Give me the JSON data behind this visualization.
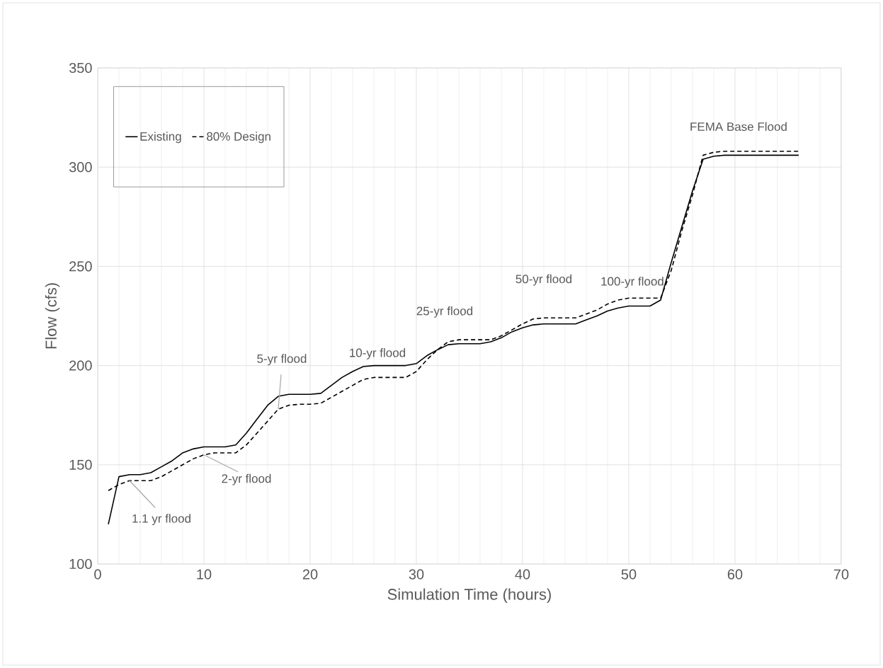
{
  "chart_data": {
    "type": "line",
    "xlabel": "Simulation Time (hours)",
    "ylabel": "Flow (cfs)",
    "xlim": [
      0,
      70
    ],
    "ylim": [
      100,
      350
    ],
    "xticks": [
      0,
      10,
      20,
      30,
      40,
      50,
      60,
      70
    ],
    "yticks": [
      100,
      150,
      200,
      250,
      300,
      350
    ],
    "grid": true,
    "legend": "top left",
    "marker": "none",
    "x": [
      1,
      2,
      3,
      4,
      5,
      6,
      7,
      8,
      9,
      10,
      11,
      12,
      13,
      14,
      15,
      16,
      17,
      18,
      19,
      20,
      21,
      22,
      23,
      24,
      25,
      26,
      27,
      28,
      29,
      30,
      31,
      32,
      33,
      34,
      35,
      36,
      37,
      38,
      39,
      40,
      41,
      42,
      43,
      44,
      45,
      46,
      47,
      48,
      49,
      50,
      51,
      52,
      53,
      54,
      55,
      56,
      57,
      58,
      59,
      60,
      61,
      62,
      63,
      64,
      65,
      66
    ],
    "series": [
      {
        "name": "Existing",
        "color": "#000000",
        "line_style": "solid",
        "values": [
          120,
          144,
          145,
          145,
          146,
          149,
          152,
          156,
          158,
          159,
          159,
          159,
          160,
          166,
          173,
          180,
          184.5,
          185.5,
          185.5,
          185.5,
          186,
          190,
          194,
          197,
          199.5,
          200,
          200,
          200,
          200,
          201,
          205,
          208,
          210.5,
          211,
          211,
          211,
          212,
          214,
          217,
          219,
          220.5,
          221,
          221,
          221,
          221,
          223,
          225,
          227.5,
          229,
          230,
          230,
          230,
          233,
          252,
          270,
          288,
          304,
          305.5,
          306,
          306,
          306,
          306,
          306,
          306,
          306,
          306
        ]
      },
      {
        "name": "80% Design",
        "color": "#000000",
        "line_style": "dashed",
        "values": [
          137,
          140,
          142,
          142,
          142,
          144,
          147,
          150,
          153,
          155,
          156,
          156,
          156,
          160,
          166,
          172,
          178,
          180,
          180.5,
          180.5,
          181,
          184,
          187,
          190,
          193,
          194,
          194,
          194,
          194,
          197,
          203,
          208,
          212,
          213,
          213,
          213,
          213,
          215,
          218,
          221,
          223.5,
          224,
          224,
          224,
          224,
          226,
          228,
          231,
          233,
          234,
          234,
          234,
          234,
          248,
          268,
          286,
          306,
          307.5,
          308,
          308,
          308,
          308,
          308,
          308,
          308,
          308
        ]
      }
    ],
    "annotations": [
      {
        "text": "1.1 yr flood",
        "x": 3,
        "y": 142
      },
      {
        "text": "2-yr flood",
        "x": 10,
        "y": 155
      },
      {
        "text": "5-yr flood",
        "x": 17,
        "y": 178
      },
      {
        "text": "10-yr flood",
        "x": 25,
        "y": 199.5
      },
      {
        "text": "25-yr flood",
        "x": 33,
        "y": 212
      },
      {
        "text": "50-yr flood",
        "x": 41,
        "y": 223.5
      },
      {
        "text": "100-yr flood",
        "x": 49,
        "y": 233
      },
      {
        "text": "FEMA Base Flood",
        "x": 59,
        "y": 308
      }
    ]
  }
}
